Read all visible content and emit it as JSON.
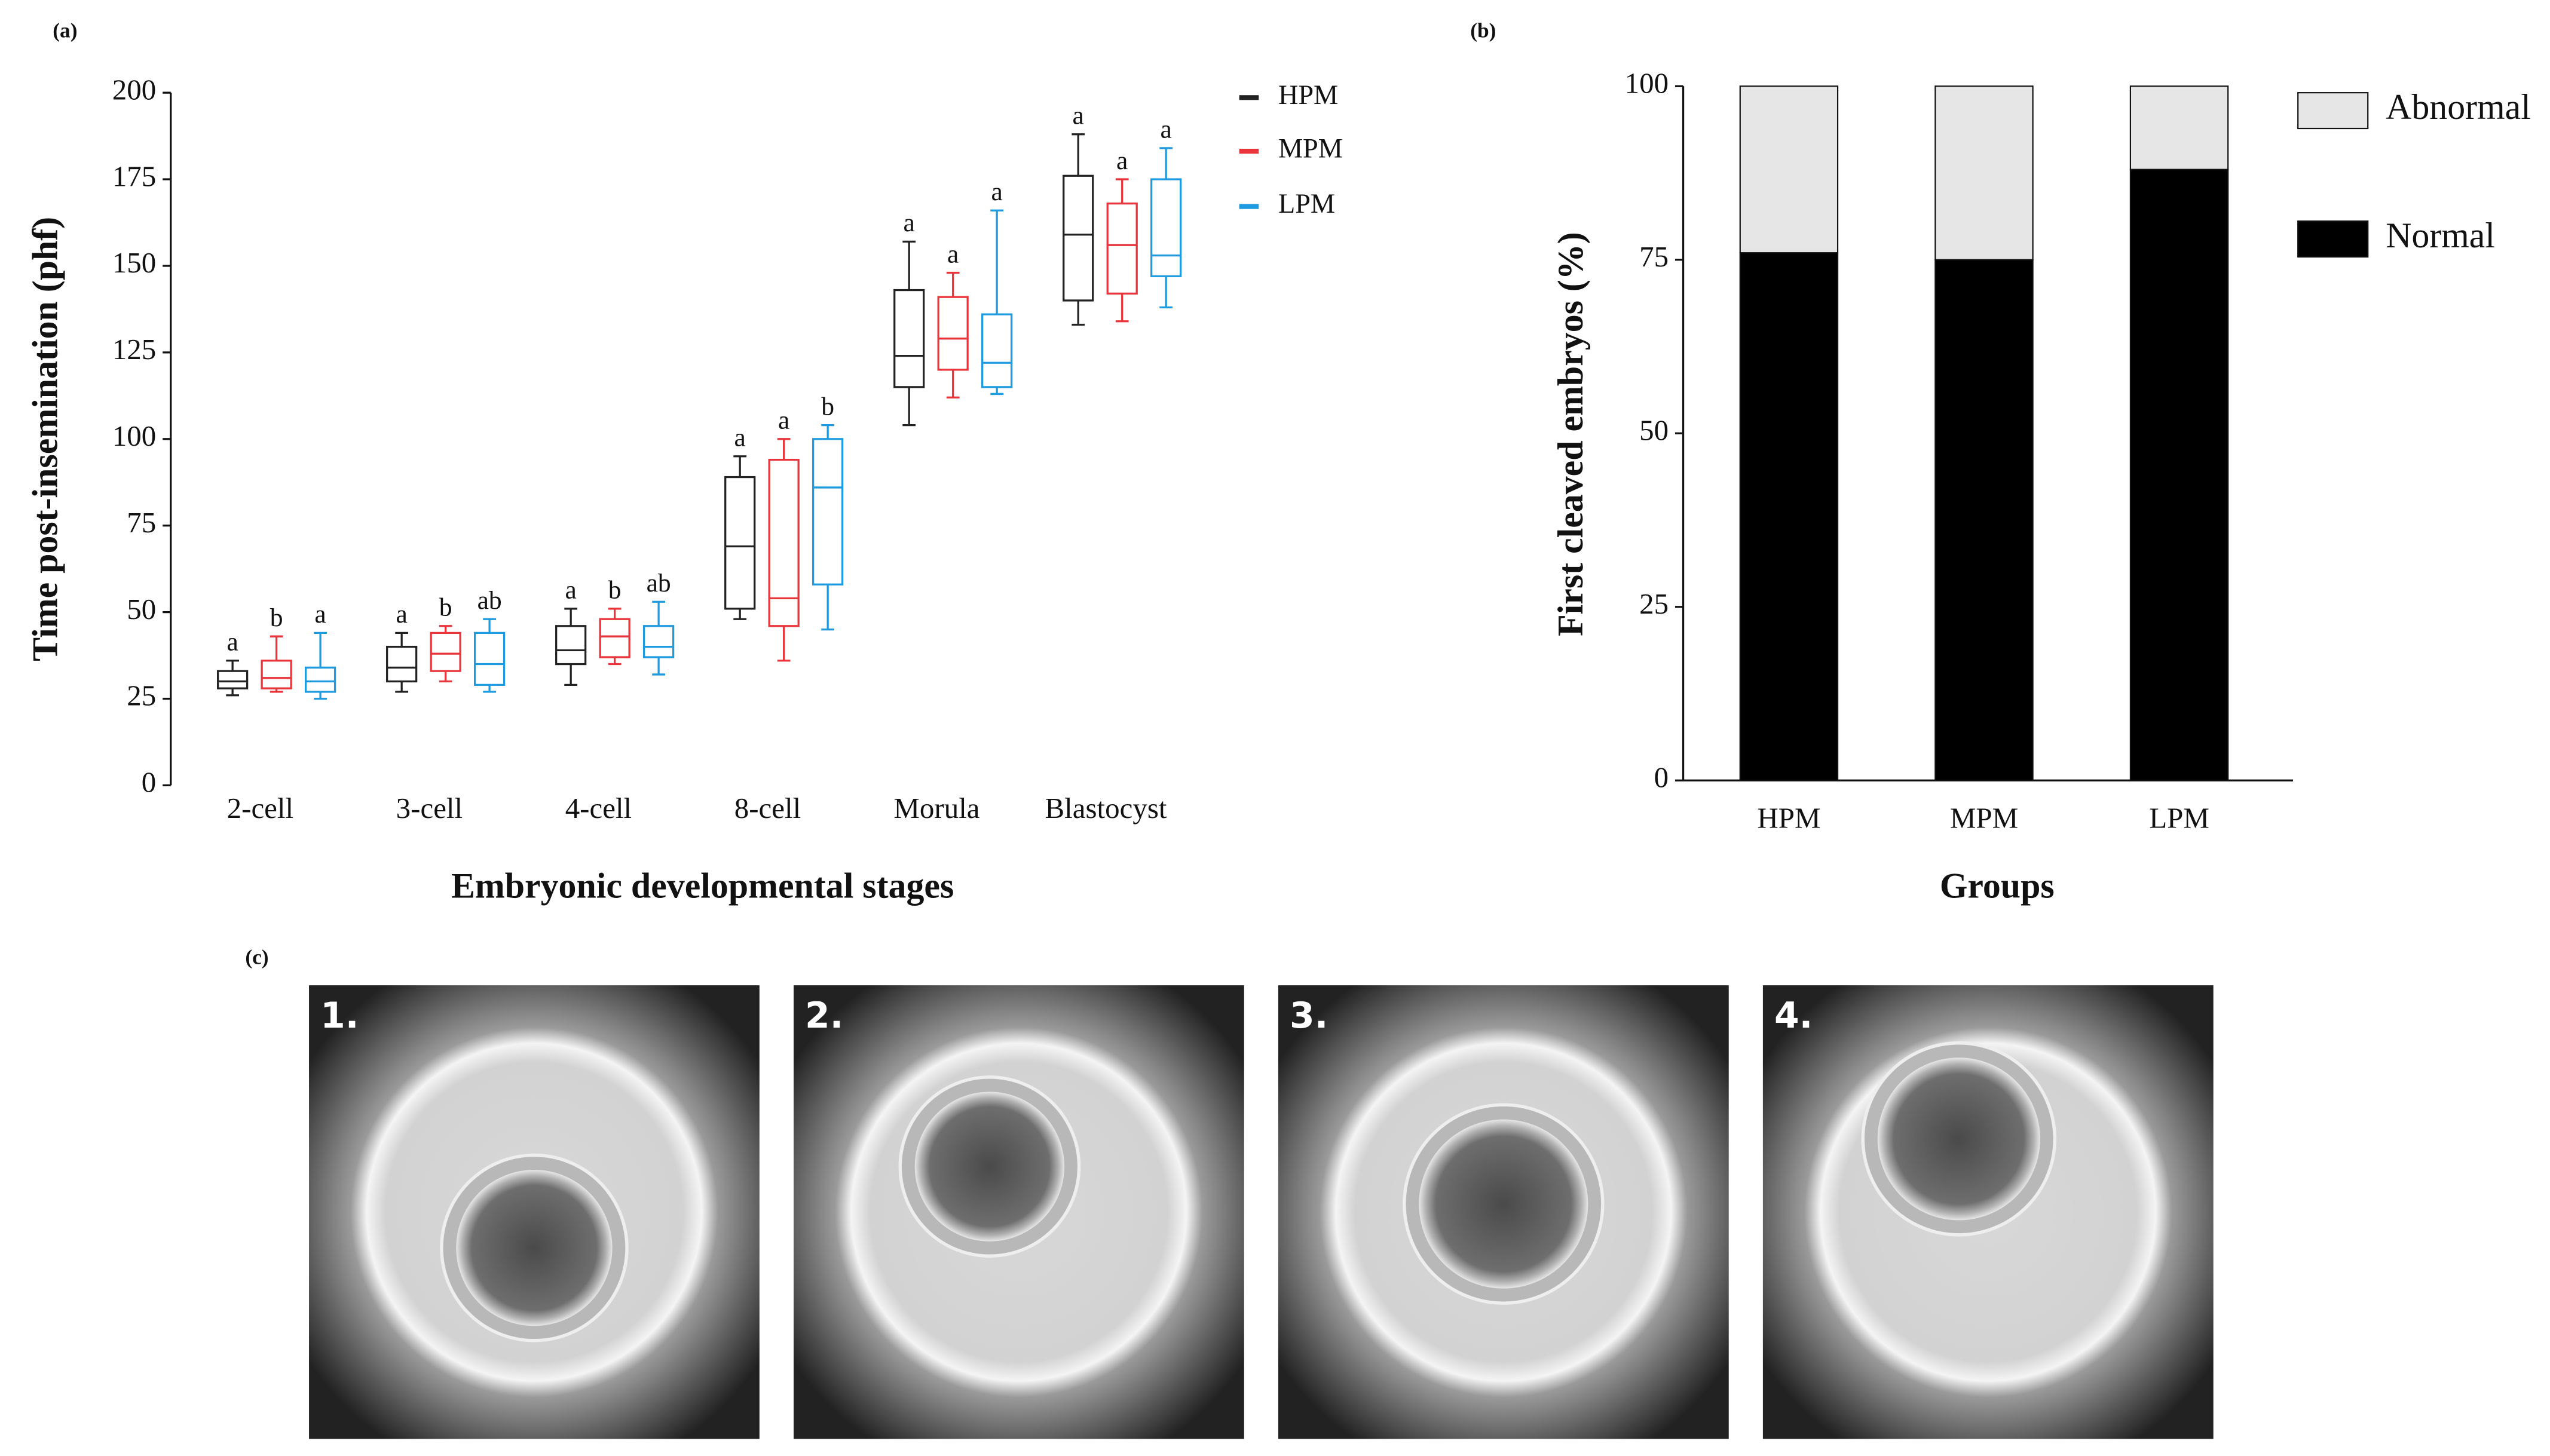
{
  "chart_data": [
    {
      "type": "box",
      "label": "(a)",
      "y_label": "Time post-insemination (phf)",
      "x_label": "Embryonic developmental stages",
      "categories": [
        "2-cell",
        "3-cell",
        "4-cell",
        "8-cell",
        "Morula",
        "Blastocyst"
      ],
      "ylim": [
        0,
        200
      ],
      "yticks": [
        0,
        25,
        50,
        75,
        100,
        125,
        150,
        175,
        200
      ],
      "series": [
        {
          "name": "HPM",
          "color": "#222222",
          "min": [
            26,
            27,
            29,
            48,
            104,
            133
          ],
          "q1": [
            28,
            30,
            35,
            51,
            115,
            140
          ],
          "median": [
            30,
            34,
            39,
            69,
            124,
            159
          ],
          "q3": [
            33,
            40,
            46,
            89,
            143,
            176
          ],
          "max": [
            36,
            44,
            51,
            95,
            157,
            188
          ],
          "significance": [
            "a",
            "a",
            "a",
            "a",
            "a",
            "a"
          ]
        },
        {
          "name": "MPM",
          "color": "#e8343a",
          "min": [
            27,
            30,
            35,
            36,
            112,
            134
          ],
          "q1": [
            28,
            33,
            37,
            46,
            120,
            142
          ],
          "median": [
            31,
            38,
            43,
            54,
            129,
            156
          ],
          "q3": [
            36,
            44,
            48,
            94,
            141,
            168
          ],
          "max": [
            43,
            46,
            51,
            100,
            148,
            175
          ],
          "significance": [
            "b",
            "b",
            "b",
            "a",
            "a",
            "a"
          ]
        },
        {
          "name": "LPM",
          "color": "#1e9be0",
          "min": [
            25,
            27,
            32,
            45,
            113,
            138
          ],
          "q1": [
            27,
            29,
            37,
            58,
            115,
            147
          ],
          "median": [
            30,
            35,
            40,
            86,
            122,
            153
          ],
          "q3": [
            34,
            44,
            46,
            100,
            136,
            175
          ],
          "max": [
            44,
            48,
            53,
            104,
            166,
            184
          ],
          "significance": [
            "a",
            "ab",
            "ab",
            "b",
            "a",
            "a"
          ]
        }
      ]
    },
    {
      "type": "stacked_bar",
      "label": "(b)",
      "y_label": "First cleaved embryos (%)",
      "x_label": "Groups",
      "categories": [
        "HPM",
        "MPM",
        "LPM"
      ],
      "ylim": [
        0,
        100
      ],
      "yticks": [
        0,
        25,
        50,
        75,
        100
      ],
      "series": [
        {
          "name": "Normal",
          "color": "#000000",
          "values": [
            76,
            75,
            88
          ]
        },
        {
          "name": "Abnormal",
          "color": "#e6e6e6",
          "values": [
            24,
            25,
            12
          ]
        }
      ]
    }
  ],
  "images": {
    "label": "(c)",
    "items": [
      "1.",
      "2.",
      "3.",
      "4."
    ]
  }
}
